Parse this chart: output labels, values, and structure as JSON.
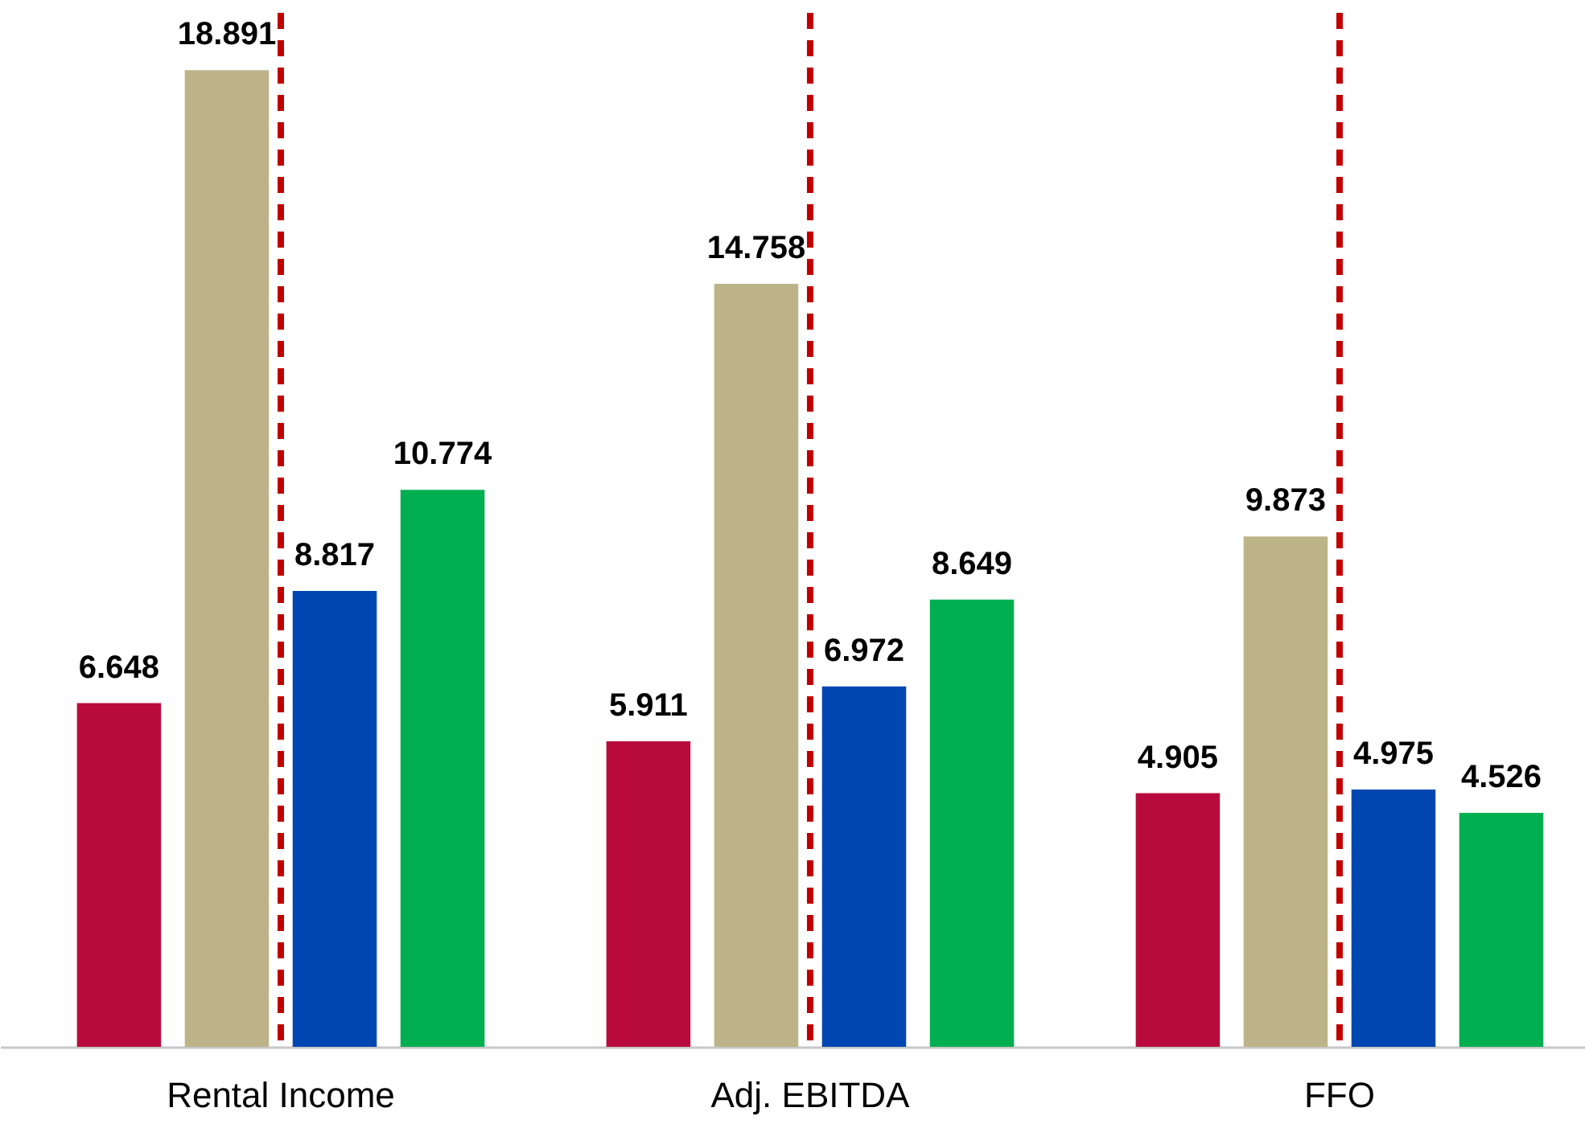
{
  "chart_data": {
    "type": "bar",
    "categories": [
      "Rental Income",
      "Adj. EBITDA",
      "FFO"
    ],
    "series": [
      {
        "color": "#b90b3b",
        "values": [
          6.648,
          5.911,
          4.905
        ]
      },
      {
        "color": "#bcb388",
        "values": [
          18.891,
          14.758,
          9.873
        ]
      },
      {
        "color": "#0047b2",
        "values": [
          8.817,
          6.972,
          4.975
        ]
      },
      {
        "color": "#00af50",
        "values": [
          10.774,
          8.649,
          4.526
        ]
      }
    ],
    "data_labels": true,
    "ref_lines": [
      {
        "axis": "x",
        "value": "Rental Income",
        "color": "#c00000",
        "line_style": "dashed"
      },
      {
        "axis": "x",
        "value": "Adj. EBITDA",
        "color": "#c00000",
        "line_style": "dashed"
      },
      {
        "axis": "x",
        "value": "FFO",
        "color": "#c00000",
        "line_style": "dashed"
      }
    ]
  }
}
